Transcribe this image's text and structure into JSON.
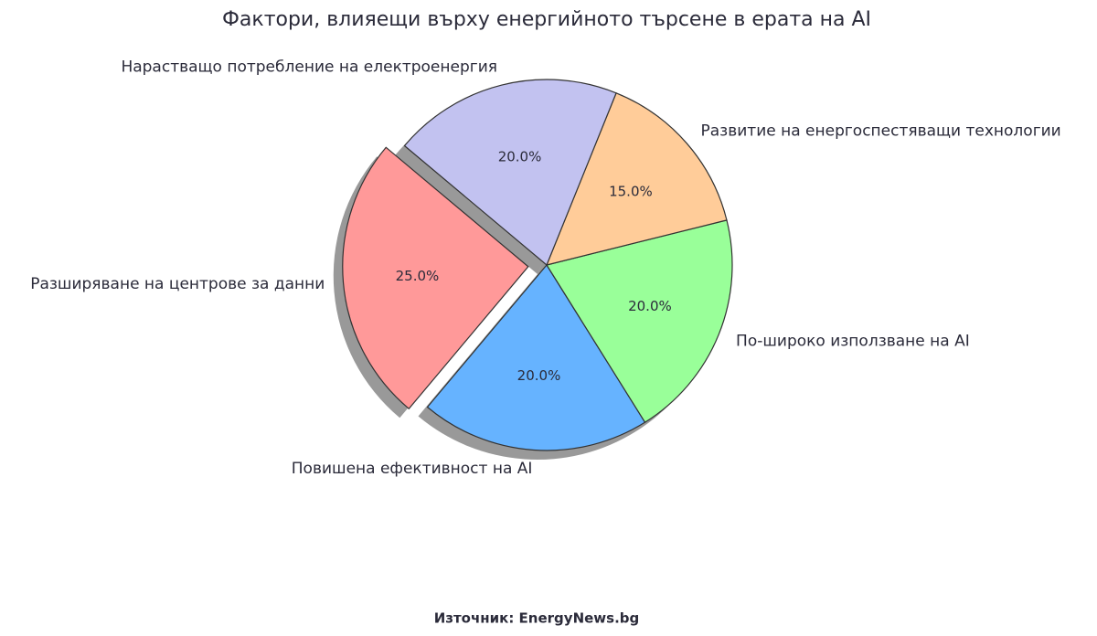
{
  "chart_data": {
    "type": "pie",
    "title": "Фактори, влияещи върху енергийното търсене в ерата на AI",
    "categories": [
      "Разширяване на центрове за данни",
      "Повишена ефективност на AI",
      "По-широко използване на AI",
      "Развитие на енергоспестяващи технологии",
      "Нарастващо потребление на електроенергия"
    ],
    "values": [
      25,
      20,
      20,
      15,
      20
    ],
    "value_labels": [
      "25.0%",
      "20.0%",
      "20.0%",
      "15.0%",
      "20.0%"
    ],
    "colors": [
      "#ff9999",
      "#66b3ff",
      "#99ff99",
      "#ffcc99",
      "#c2c2f0"
    ],
    "explode": [
      0.1,
      0,
      0,
      0,
      0
    ],
    "shadow": true,
    "source": "Източник: EnergyNews.bg"
  }
}
